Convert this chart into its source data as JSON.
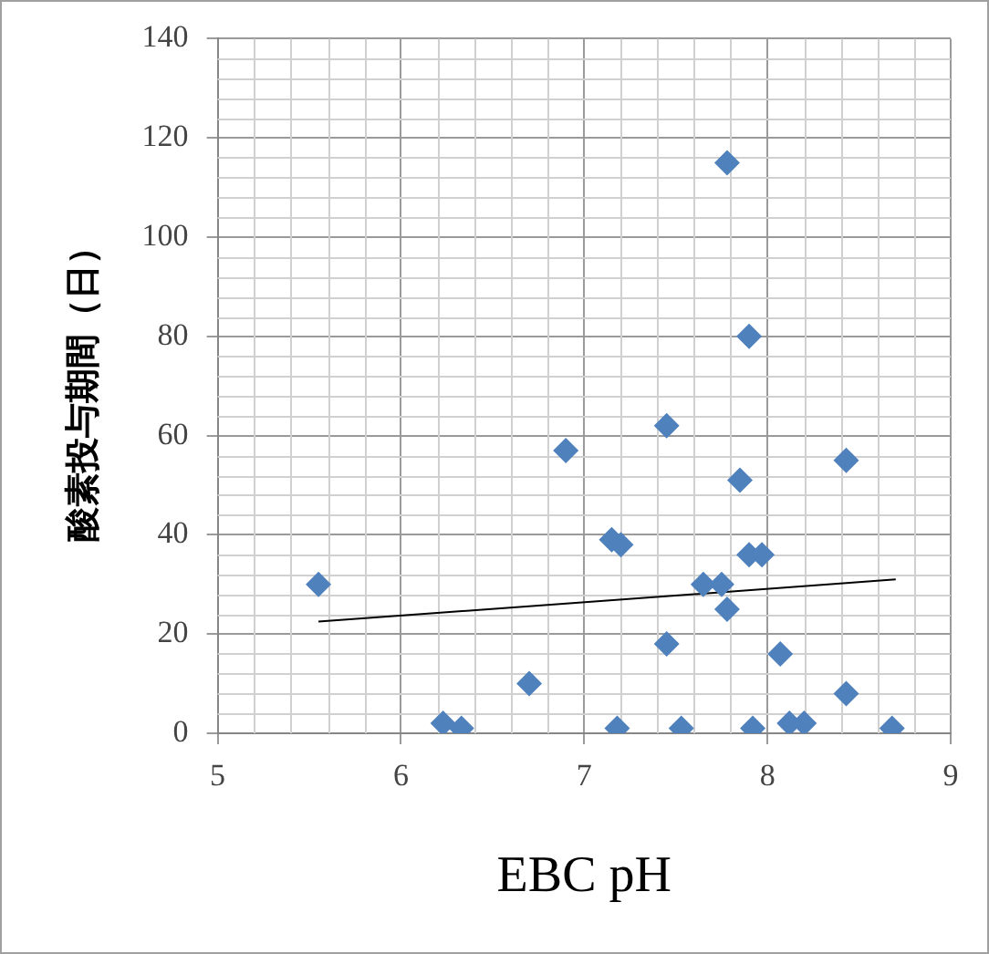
{
  "chart_data": {
    "type": "scatter",
    "xlabel": "EBC pH",
    "ylabel": "酸素投与期間（日）",
    "xlim": [
      5,
      9
    ],
    "xticks": [
      5,
      6,
      7,
      8,
      9
    ],
    "ylim": [
      0,
      140
    ],
    "yticks": [
      0,
      20,
      40,
      60,
      80,
      100,
      120,
      140
    ],
    "grid": true,
    "legend": false,
    "marker": "diamond",
    "series": [
      {
        "color": "#4f81bd",
        "x": [
          5.55,
          6.23,
          6.33,
          6.7,
          6.9,
          7.15,
          7.2,
          7.18,
          7.45,
          7.45,
          7.53,
          7.65,
          7.75,
          7.78,
          7.78,
          7.85,
          7.9,
          7.9,
          7.97,
          7.92,
          8.07,
          8.12,
          8.2,
          8.43,
          8.43,
          8.68
        ],
        "values": [
          30,
          2,
          1,
          10,
          57,
          39,
          38,
          1,
          62,
          18,
          1,
          30,
          30,
          25,
          115,
          51,
          80,
          36,
          36,
          1,
          16,
          2,
          2,
          55,
          8,
          1
        ]
      },
      {
        "type": "line",
        "color": "#000000",
        "marker": "none",
        "x": [
          5.55,
          8.7
        ],
        "values": [
          22.5,
          31
        ]
      }
    ]
  }
}
